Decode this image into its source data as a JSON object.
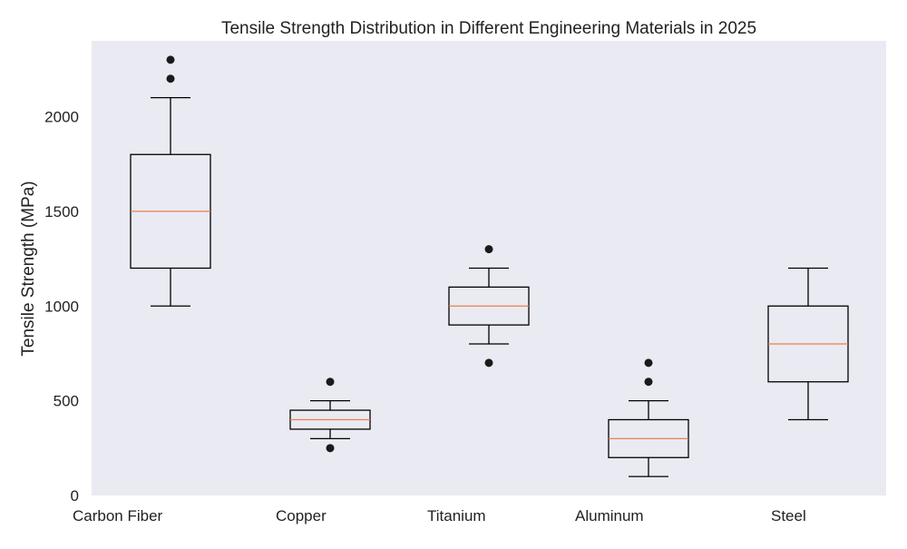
{
  "colors": {
    "background": "#ffffff",
    "plot_background": "#eaeaf2",
    "box_stroke": "#000000",
    "median": "#e8804f",
    "outlier": "#1a1a1a",
    "text": "#222222"
  },
  "chart_data": {
    "type": "box",
    "title": "Tensile Strength Distribution in Different Engineering Materials in 2025",
    "xlabel": "",
    "ylabel": "Tensile Strength (MPa)",
    "ylim": [
      0,
      2400
    ],
    "yticks": [
      0,
      500,
      1000,
      1500,
      2000
    ],
    "ytick_labels": [
      "0",
      "500",
      "1000",
      "1500",
      "2000"
    ],
    "grid": false,
    "legend": "none",
    "categories": [
      "Carbon Fiber",
      "Copper",
      "Titanium",
      "Aluminum",
      "Steel"
    ],
    "boxes": [
      {
        "category": "Carbon Fiber",
        "whisker_low": 1000,
        "q1": 1200,
        "median": 1500,
        "q3": 1800,
        "whisker_high": 2100,
        "outliers": [
          2200,
          2300
        ]
      },
      {
        "category": "Copper",
        "whisker_low": 300,
        "q1": 350,
        "median": 400,
        "q3": 450,
        "whisker_high": 500,
        "outliers": [
          250,
          600
        ]
      },
      {
        "category": "Titanium",
        "whisker_low": 800,
        "q1": 900,
        "median": 1000,
        "q3": 1100,
        "whisker_high": 1200,
        "outliers": [
          700,
          1300
        ]
      },
      {
        "category": "Aluminum",
        "whisker_low": 100,
        "q1": 200,
        "median": 300,
        "q3": 400,
        "whisker_high": 500,
        "outliers": [
          600,
          700
        ]
      },
      {
        "category": "Steel",
        "whisker_low": 400,
        "q1": 600,
        "median": 800,
        "q3": 1000,
        "whisker_high": 1200,
        "outliers": []
      }
    ]
  }
}
